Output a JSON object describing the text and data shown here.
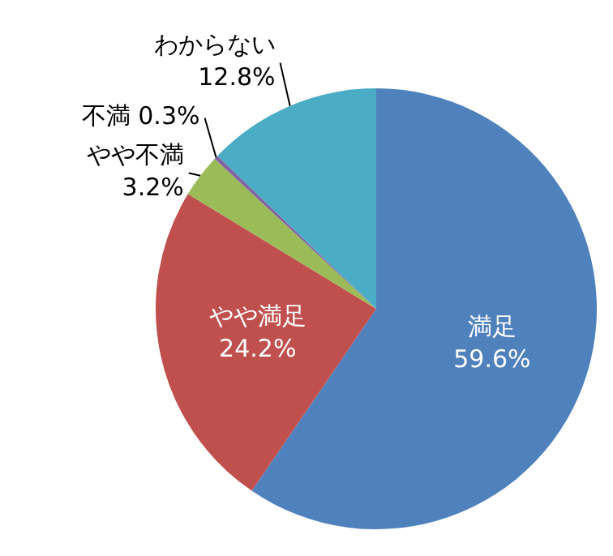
{
  "chart_data": {
    "type": "pie",
    "categories": [
      "満足",
      "やや満足",
      "やや不満",
      "不満",
      "わからない"
    ],
    "values": [
      59.6,
      24.2,
      3.2,
      0.3,
      12.8
    ],
    "colors": [
      "#4f81bd",
      "#c0504d",
      "#9bbb59",
      "#8064a2",
      "#4bacc6"
    ],
    "value_labels": [
      "59.6%",
      "24.2%",
      "3.2%",
      "0.3%",
      "12.8%"
    ]
  }
}
